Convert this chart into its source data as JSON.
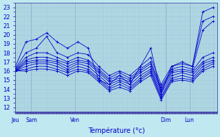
{
  "xlabel": "Température (°c)",
  "bg_color": "#c0e8f0",
  "grid_color": "#a0c8d8",
  "line_color": "#0000cc",
  "ylim": [
    11.5,
    23.5
  ],
  "yticks": [
    12,
    13,
    14,
    15,
    16,
    17,
    18,
    19,
    20,
    21,
    22,
    23
  ],
  "day_labels": [
    "Jeu",
    "Sam",
    "",
    "Ven",
    "",
    "",
    "Dim",
    "Lun",
    ""
  ],
  "day_positions": [
    0.0,
    0.08,
    0.16,
    0.3,
    0.44,
    0.62,
    0.76,
    0.88,
    1.0
  ],
  "vline_positions": [
    0.0,
    0.08,
    0.3,
    0.76,
    0.88
  ],
  "series": [
    [
      16.5,
      19.2,
      19.5,
      20.2,
      19.2,
      18.5,
      19.2,
      18.5,
      15.0,
      14.5,
      15.5,
      14.5,
      16.5,
      18.5,
      13.5,
      16.5,
      17.0,
      16.5,
      22.5,
      23.0
    ],
    [
      16.3,
      18.0,
      18.5,
      19.8,
      18.0,
      17.5,
      18.0,
      17.8,
      16.5,
      15.5,
      16.0,
      15.5,
      16.5,
      17.5,
      14.5,
      16.5,
      16.8,
      16.5,
      21.5,
      22.0
    ],
    [
      16.2,
      17.5,
      18.0,
      18.0,
      17.5,
      17.0,
      17.5,
      17.2,
      16.2,
      15.2,
      15.8,
      15.2,
      16.2,
      17.0,
      14.2,
      16.2,
      16.5,
      16.2,
      20.5,
      21.5
    ],
    [
      16.1,
      17.2,
      17.5,
      17.5,
      17.2,
      16.8,
      17.2,
      17.0,
      16.0,
      15.0,
      15.5,
      15.0,
      16.0,
      16.8,
      14.0,
      16.0,
      16.2,
      16.0,
      17.5,
      18.0
    ],
    [
      16.0,
      17.0,
      17.2,
      17.2,
      17.0,
      16.5,
      17.0,
      16.8,
      15.8,
      14.8,
      15.2,
      14.8,
      15.8,
      16.5,
      13.8,
      15.8,
      16.0,
      15.8,
      17.0,
      17.5
    ],
    [
      16.0,
      16.8,
      17.0,
      17.0,
      16.8,
      16.2,
      16.8,
      16.5,
      15.5,
      14.5,
      15.0,
      14.5,
      15.5,
      16.2,
      13.5,
      15.5,
      15.8,
      15.5,
      16.8,
      17.2
    ],
    [
      16.0,
      16.5,
      16.8,
      16.8,
      16.5,
      16.0,
      16.5,
      16.2,
      15.2,
      14.2,
      14.8,
      14.2,
      15.2,
      16.0,
      13.2,
      15.2,
      15.5,
      15.2,
      16.5,
      17.0
    ],
    [
      16.0,
      16.2,
      16.5,
      16.5,
      16.2,
      15.8,
      16.2,
      16.0,
      15.0,
      14.0,
      14.5,
      14.0,
      15.0,
      15.8,
      13.0,
      15.0,
      15.2,
      15.0,
      16.2,
      16.8
    ],
    [
      16.0,
      16.0,
      16.2,
      16.2,
      16.0,
      15.5,
      16.0,
      15.8,
      14.8,
      13.8,
      14.2,
      13.8,
      14.8,
      15.5,
      12.8,
      14.8,
      15.0,
      14.8,
      16.0,
      16.5
    ]
  ]
}
